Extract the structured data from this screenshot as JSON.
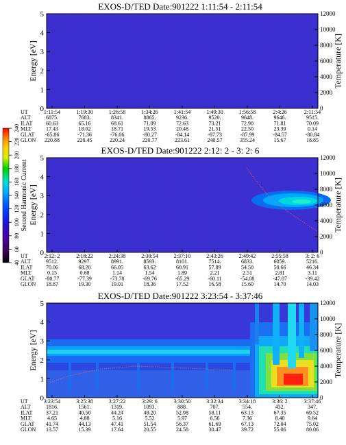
{
  "chart_data": [
    {
      "type": "heatmap",
      "title": "EXOS-D/TED   Date:901222   1:11:54 - 2:11:54",
      "ylabel": "Energy [eV]",
      "y2label": "Temperature [K]",
      "ylim": [
        0,
        5
      ],
      "y2lim": [
        0,
        12000
      ],
      "yticks": [
        "0",
        "1",
        "2",
        "3",
        "4",
        "5"
      ],
      "y2ticks": [
        "0",
        "2000",
        "4000",
        "6000",
        "8000",
        "10000",
        "12000"
      ],
      "row_labels": [
        "UT",
        "ALT",
        "ILAT",
        "MLT",
        "GLAT",
        "GLON"
      ],
      "columns": [
        [
          "1:11:54",
          "6875.",
          "60.63",
          "17.43",
          "-65.86",
          "220.88"
        ],
        [
          "1:19:30",
          "7683.",
          "65.16",
          "18.02",
          "-71.36",
          "220.45"
        ],
        [
          "1:26:58",
          "8341.",
          "68.61",
          "18.71",
          "-76.06",
          "220.24"
        ],
        [
          "1:34:26",
          "8865.",
          "71.09",
          "19.53",
          "-80.27",
          "220.77"
        ],
        [
          "1:41:54",
          "9236.",
          "72.63",
          "20.48",
          "-84.14",
          "223.61"
        ],
        [
          "1:49:30",
          "9520.",
          "73.21",
          "21.51",
          "-87.73",
          "240.57"
        ],
        [
          "1:56:58",
          "9648.",
          "72.90",
          "22.50",
          "-87.99",
          "355.24"
        ],
        [
          "2:4:26",
          "9646.",
          "71.81",
          "23.39",
          "-84.57",
          "15.67"
        ],
        [
          "2:11:54",
          "9515.",
          "70.09",
          "0.14",
          "-80.84",
          "18.85"
        ]
      ]
    },
    {
      "type": "heatmap",
      "title": "EXOS-D/TED   Date:901222   2:12: 2 - 3: 2: 6",
      "ylabel": "Energy [eV]",
      "y2label": "Temperature [K]",
      "ylim": [
        0,
        5
      ],
      "y2lim": [
        0,
        12000
      ],
      "yticks": [
        "0",
        "1",
        "2",
        "3",
        "4",
        "5"
      ],
      "y2ticks": [
        "0",
        "2000",
        "4000",
        "6000",
        "8000",
        "10000",
        "12000"
      ],
      "row_labels": [
        "UT",
        "ALT",
        "ILAT",
        "MLT",
        "GLAT",
        "GLON"
      ],
      "columns": [
        [
          "2:12: 2",
          "9512.",
          "70.06",
          "0.15",
          "-80.77",
          "18.87"
        ],
        [
          "2:18:22",
          "9297.",
          "68.20",
          "0.68",
          "-77.39",
          "19.30"
        ],
        [
          "2:24:38",
          "8991.",
          "66.05",
          "1.14",
          "-73.78",
          "19.01"
        ],
        [
          "2:30:54",
          "8593.",
          "63.62",
          "1.54",
          "-69.76",
          "18.36"
        ],
        [
          "2:37:10",
          "8101.",
          "60.91",
          "1.89",
          "-65.29",
          "17.52"
        ],
        [
          "2:43:26",
          "7514.",
          "57.89",
          "2.21",
          "-60.11",
          "16.58"
        ],
        [
          "2:49:42",
          "6833.",
          "54.50",
          "2.51",
          "-54.08",
          "15.60"
        ],
        [
          "2:55:58",
          "6059.",
          "50.66",
          "2.81",
          "-47.07",
          "14.70"
        ],
        [
          "3: 2: 6",
          "5216.",
          "46.34",
          "3.11",
          "-39.42",
          "14.03"
        ]
      ]
    },
    {
      "type": "heatmap",
      "title": "EXOS-D/TED   Date:901222   3:23:54 - 3:37:46",
      "ylabel": "Energy [eV]",
      "y2label": "Temperature [K]",
      "ylim": [
        0,
        5
      ],
      "y2lim": [
        0,
        12000
      ],
      "yticks": [
        "0",
        "1",
        "2",
        "3",
        "4",
        "5"
      ],
      "y2ticks": [
        "0",
        "2000",
        "4000",
        "6000",
        "8000",
        "10000",
        "12000"
      ],
      "row_labels": [
        "UT",
        "ALT",
        "ILAT",
        "MLT",
        "GLAT",
        "GLON"
      ],
      "columns": [
        [
          "3:23:54",
          "1816.",
          "37.21",
          "4.65",
          "41.74",
          "13.57"
        ],
        [
          "3:25:38",
          "1561.",
          "40.50",
          "4.88",
          "44.13",
          "15.39"
        ],
        [
          "3:27:22",
          "1319.",
          "44.24",
          "5.16",
          "47.41",
          "17.64"
        ],
        [
          "3:29: 6",
          "1093.",
          "48.20",
          "5.52",
          "51.54",
          "20.55"
        ],
        [
          "3:30:50",
          "888.",
          "52.98",
          "5.97",
          "56.37",
          "24.58"
        ],
        [
          "3:32:34",
          "707.",
          "58.11",
          "6.56",
          "61.69",
          "30.47"
        ],
        [
          "3:34:18",
          "554.",
          "63.13",
          "7.36",
          "67.13",
          "39.72"
        ],
        [
          "3:36: 2",
          "432.",
          "67.35",
          "8.40",
          "72.04",
          "55.06"
        ],
        [
          "3:37:46",
          "347.",
          "69.52",
          "9.64",
          "75.02",
          "80.06"
        ]
      ]
    }
  ],
  "colorbar": {
    "label": "Second Harmonic Current",
    "ticks": [
      "40",
      "60",
      "80",
      "100",
      "120",
      "140",
      "160",
      "180",
      "200",
      "220",
      "240"
    ],
    "colors": [
      "#000000",
      "#3a0050",
      "#4b00a0",
      "#1a1ad8",
      "#0050ff",
      "#00a8ff",
      "#00e0d0",
      "#00d000",
      "#d0f000",
      "#ffd000",
      "#ff8000",
      "#ff0000"
    ]
  }
}
